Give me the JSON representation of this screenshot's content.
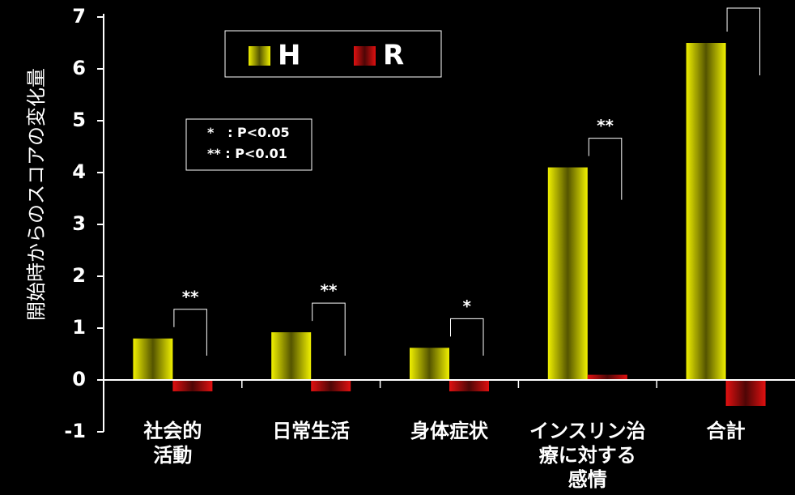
{
  "chart_data": {
    "type": "bar",
    "y_label": "開始時からのスコアの変化量",
    "categories": [
      "社会的\n活動",
      "日常生活",
      "身体症状",
      "インスリン治\n療に対する\n感情",
      "合計"
    ],
    "series": [
      {
        "name": "H",
        "color": "#f0f000",
        "values": [
          0.8,
          0.92,
          0.62,
          4.1,
          6.5
        ]
      },
      {
        "name": "R",
        "color": "#e01010",
        "values": [
          -0.22,
          -0.22,
          -0.22,
          0.1,
          -0.5
        ]
      }
    ],
    "annotations": [
      "**",
      "**",
      "*",
      "**"
    ],
    "notes": [
      "*   : P<0.05",
      "** : P<0.01"
    ],
    "ylim": [
      -1,
      7
    ],
    "yticks": [
      -1,
      0,
      1,
      2,
      3,
      4,
      5,
      6,
      7
    ]
  }
}
